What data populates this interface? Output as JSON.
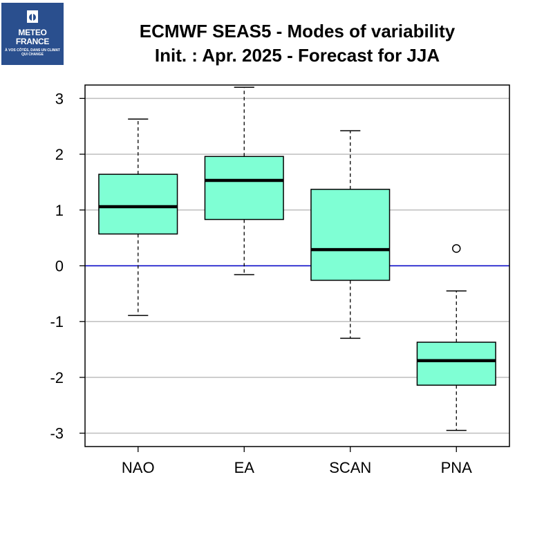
{
  "logo": {
    "name": "logo-meteo-france",
    "line1": "METEO",
    "line2": "FRANCE",
    "tagline": "À VOS CÔTÉS, DANS UN CLIMAT QUI CHANGE"
  },
  "chart_data": {
    "type": "boxplot",
    "title": "ECMWF SEAS5 - Modes of variability",
    "subtitle": "Init. : Apr. 2025 - Forecast for JJA",
    "categories": [
      "NAO",
      "EA",
      "SCAN",
      "PNA"
    ],
    "boxes": [
      {
        "category": "NAO",
        "whisker_low": -0.89,
        "q1": 0.57,
        "median": 1.06,
        "q3": 1.64,
        "whisker_high": 2.63,
        "outliers": []
      },
      {
        "category": "EA",
        "whisker_low": -0.16,
        "q1": 0.83,
        "median": 1.53,
        "q3": 1.96,
        "whisker_high": 3.2,
        "outliers": []
      },
      {
        "category": "SCAN",
        "whisker_low": -1.3,
        "q1": -0.26,
        "median": 0.29,
        "q3": 1.37,
        "whisker_high": 2.42,
        "outliers": []
      },
      {
        "category": "PNA",
        "whisker_low": -2.95,
        "q1": -2.14,
        "median": -1.7,
        "q3": -1.37,
        "whisker_high": -0.45,
        "outliers": [
          0.31
        ]
      }
    ],
    "y_ticks": [
      -3,
      -2,
      -1,
      0,
      1,
      2,
      3
    ],
    "ylim": [
      -3.24,
      3.24
    ],
    "grid": "horizontal",
    "reference_line": 0,
    "colors": {
      "box_fill": "#7fffd4",
      "reference_line": "#0000cc",
      "grid": "#bebebe"
    }
  }
}
